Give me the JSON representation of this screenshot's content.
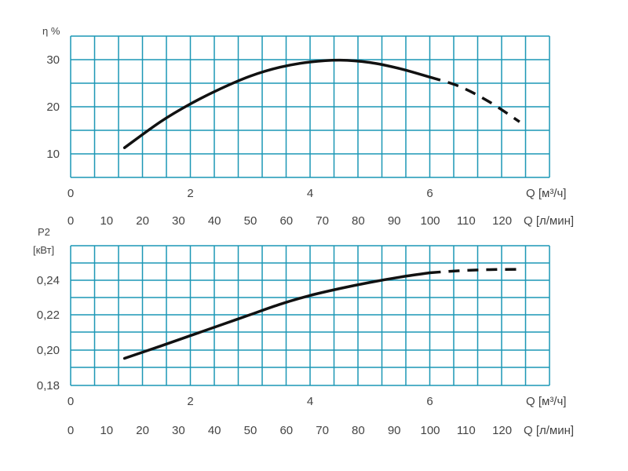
{
  "chart_data": [
    {
      "type": "line",
      "ylabel": "η %",
      "yticks": [
        "10",
        "20",
        "30"
      ],
      "ylim": [
        5,
        35
      ],
      "xlim": [
        0,
        8
      ],
      "x_axis_m3h": {
        "label": "Q [м³/ч]",
        "ticks": [
          "0",
          "2",
          "4",
          "6"
        ]
      },
      "x_axis_lmin": {
        "label": "Q [л/мин]",
        "ticks": [
          "0",
          "10",
          "20",
          "30",
          "40",
          "50",
          "60",
          "70",
          "80",
          "90",
          "100",
          "110",
          "120"
        ]
      },
      "grid": true,
      "series": [
        {
          "style": "solid",
          "x": [
            0.9,
            1.5,
            2.0,
            2.5,
            3.0,
            3.5,
            4.0,
            4.5,
            5.0,
            5.5,
            6.0
          ],
          "y": [
            11.3,
            16.8,
            20.6,
            23.8,
            26.5,
            28.4,
            29.5,
            29.9,
            29.4,
            28.1,
            26.3
          ]
        },
        {
          "style": "dashed",
          "x": [
            6.0,
            6.5,
            7.0,
            7.5
          ],
          "y": [
            26.3,
            24.3,
            21.0,
            16.8
          ]
        }
      ]
    },
    {
      "type": "line",
      "ylabel": "P2 [кВт]",
      "yticks": [
        "0,18",
        "0,20",
        "0,22",
        "0,24"
      ],
      "ylim": [
        0.18,
        0.26
      ],
      "xlim": [
        0,
        8
      ],
      "x_axis_m3h": {
        "label": "Q [м³/ч]",
        "ticks": [
          "0",
          "2",
          "4",
          "6"
        ]
      },
      "x_axis_lmin": {
        "label": "Q [л/мин]",
        "ticks": [
          "0",
          "10",
          "20",
          "30",
          "40",
          "50",
          "60",
          "70",
          "80",
          "90",
          "100",
          "110",
          "120"
        ]
      },
      "grid": true,
      "series": [
        {
          "style": "solid",
          "x": [
            0.9,
            1.5,
            2.0,
            2.5,
            3.0,
            3.5,
            4.0,
            4.5,
            5.0,
            5.5,
            6.0
          ],
          "y": [
            0.1955,
            0.2025,
            0.2085,
            0.2145,
            0.2205,
            0.2265,
            0.2315,
            0.2355,
            0.239,
            0.242,
            0.2445
          ]
        },
        {
          "style": "dashed",
          "x": [
            6.0,
            6.5,
            7.0,
            7.5
          ],
          "y": [
            0.2445,
            0.2457,
            0.2463,
            0.2465
          ]
        }
      ]
    }
  ]
}
